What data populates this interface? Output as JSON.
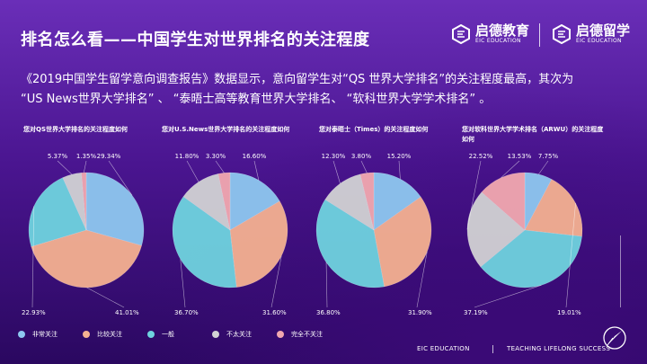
{
  "header": {
    "title": "排名怎么看——中国学生对世界排名的关注程度",
    "logo1_cn": "启德教育",
    "logo1_en": "EIC EDUCATION",
    "logo2_cn": "启德留学",
    "logo2_en": "EIC EDUCATION"
  },
  "paragraph": {
    "line1": "《2019中国学生留学意向调查报告》数据显示，意向留学生对“QS 世界大学排名”的关注程度最高，其次为",
    "line2": "“US News世界大学排名” 、 “泰晤士高等教育世界大学排名、 “软科世界大学学术排名” 。"
  },
  "footer": {
    "left": "EIC EDUCATION",
    "right": "TEACHING LIFELONG SUCCESS"
  },
  "colors": {
    "非常关注": "#8ec8f0",
    "比较关注": "#f5b191",
    "一般": "#6fd3df",
    "不太关注": "#d2d2d4",
    "完全不关注": "#f2a8b0"
  },
  "chart_data": [
    {
      "type": "pie",
      "title": "您对QS世界大学排名的关注程度如何",
      "categories": [
        "非常关注",
        "比较关注",
        "一般",
        "不太关注",
        "完全不关注"
      ],
      "values": [
        29.34,
        41.01,
        22.93,
        5.37,
        1.35
      ],
      "labels": [
        "29.34%",
        "41.01%",
        "22.93%",
        "5.37%",
        "1.35%"
      ]
    },
    {
      "type": "pie",
      "title": "您对U.S.News世界大学排名的关注程度如何",
      "categories": [
        "非常关注",
        "比较关注",
        "一般",
        "不太关注",
        "完全不关注"
      ],
      "values": [
        16.6,
        31.6,
        36.7,
        11.8,
        3.3
      ],
      "labels": [
        "16.60%",
        "31.60%",
        "36.70%",
        "11.80%",
        "3.30%"
      ]
    },
    {
      "type": "pie",
      "title": "您对泰晤士（Times）的关注程度如何",
      "categories": [
        "非常关注",
        "比较关注",
        "一般",
        "不太关注",
        "完全不关注"
      ],
      "values": [
        15.2,
        31.9,
        36.8,
        12.3,
        3.8
      ],
      "labels": [
        "15.20%",
        "31.90%",
        "36.80%",
        "12.30%",
        "3.80%"
      ]
    },
    {
      "type": "pie",
      "title": "您对软科世界大学学术排名（ARWU）的关注程度如何",
      "categories": [
        "非常关注",
        "比较关注",
        "一般",
        "不太关注",
        "完全不关注"
      ],
      "values": [
        7.75,
        19.01,
        37.19,
        22.52,
        13.53
      ],
      "labels": [
        "7.75%",
        "19.01%",
        "37.19%",
        "22.52%",
        "13.53%"
      ]
    }
  ]
}
